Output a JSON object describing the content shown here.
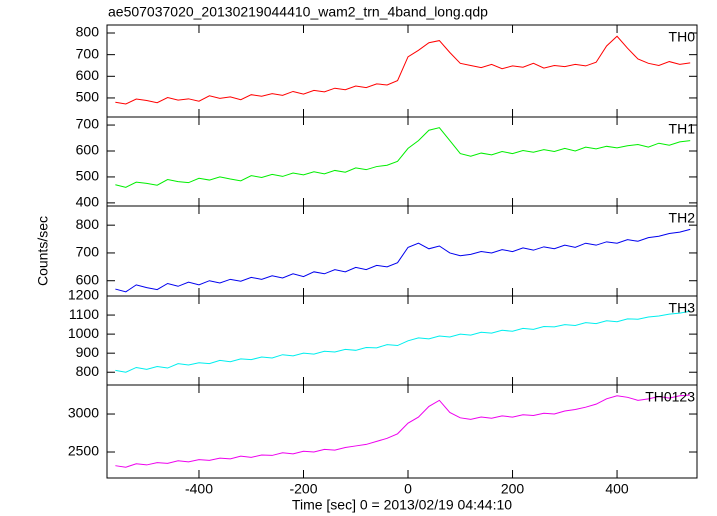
{
  "chart_data": {
    "type": "line",
    "title": "ae507037020_20130219044410_wam2_trn_4band_long.qdp",
    "x_label": "Time [sec] 0 = 2013/02/19 04:44:10",
    "y_label": "Counts/sec",
    "xlim": [
      -576,
      553
    ],
    "xticks": [
      -400,
      -200,
      0,
      200,
      400
    ],
    "x": [
      -560,
      -540,
      -520,
      -500,
      -480,
      -460,
      -440,
      -420,
      -400,
      -380,
      -360,
      -340,
      -320,
      -300,
      -280,
      -260,
      -240,
      -220,
      -200,
      -180,
      -160,
      -140,
      -120,
      -100,
      -80,
      -60,
      -40,
      -20,
      0,
      20,
      40,
      60,
      80,
      100,
      120,
      140,
      160,
      180,
      200,
      220,
      240,
      260,
      280,
      300,
      320,
      340,
      360,
      380,
      400,
      420,
      440,
      460,
      480,
      500,
      520,
      540
    ],
    "series": [
      {
        "name": "TH0",
        "color": "#ff0000",
        "ylim": [
          412,
          837
        ],
        "yticks": [
          500,
          600,
          700,
          800
        ],
        "values": [
          480,
          472,
          495,
          488,
          478,
          502,
          490,
          496,
          485,
          510,
          498,
          505,
          492,
          515,
          508,
          520,
          512,
          530,
          518,
          535,
          528,
          545,
          538,
          555,
          548,
          565,
          560,
          580,
          690,
          720,
          755,
          765,
          710,
          660,
          650,
          640,
          655,
          635,
          648,
          642,
          660,
          638,
          650,
          645,
          655,
          648,
          665,
          740,
          785,
          730,
          680,
          660,
          650,
          668,
          655,
          662
        ]
      },
      {
        "name": "TH1",
        "color": "#00ee00",
        "ylim": [
          388,
          731
        ],
        "yticks": [
          400,
          500,
          600,
          700
        ],
        "values": [
          470,
          460,
          480,
          475,
          468,
          490,
          482,
          478,
          495,
          488,
          500,
          492,
          485,
          505,
          498,
          510,
          502,
          515,
          508,
          520,
          512,
          525,
          518,
          535,
          528,
          540,
          545,
          560,
          610,
          640,
          680,
          690,
          640,
          590,
          580,
          592,
          585,
          598,
          590,
          602,
          595,
          605,
          598,
          610,
          600,
          615,
          608,
          618,
          612,
          620,
          625,
          615,
          630,
          622,
          635,
          640
        ]
      },
      {
        "name": "TH2",
        "color": "#0000ee",
        "ylim": [
          545,
          869
        ],
        "yticks": [
          600,
          700,
          800
        ],
        "values": [
          570,
          560,
          585,
          575,
          568,
          590,
          580,
          595,
          585,
          600,
          592,
          605,
          598,
          612,
          605,
          618,
          610,
          625,
          615,
          632,
          625,
          640,
          632,
          648,
          640,
          655,
          650,
          665,
          720,
          735,
          715,
          725,
          700,
          690,
          695,
          705,
          700,
          712,
          705,
          718,
          710,
          722,
          715,
          728,
          720,
          735,
          728,
          740,
          735,
          748,
          742,
          755,
          760,
          770,
          775,
          785
        ]
      },
      {
        "name": "TH3",
        "color": "#00eeee",
        "ylim": [
          733,
          1200
        ],
        "yticks": [
          800,
          900,
          1000,
          1100,
          1200
        ],
        "values": [
          810,
          800,
          825,
          815,
          830,
          822,
          845,
          838,
          850,
          845,
          862,
          855,
          870,
          866,
          880,
          875,
          892,
          886,
          900,
          895,
          910,
          906,
          920,
          915,
          930,
          928,
          945,
          940,
          965,
          980,
          975,
          990,
          985,
          1000,
          995,
          1010,
          1005,
          1020,
          1015,
          1030,
          1025,
          1040,
          1038,
          1050,
          1045,
          1060,
          1055,
          1070,
          1065,
          1080,
          1078,
          1090,
          1095,
          1105,
          1110,
          1120
        ]
      },
      {
        "name": "TH0123",
        "color": "#ee00ee",
        "ylim": [
          2158,
          3382
        ],
        "yticks": [
          2500,
          3000
        ],
        "values": [
          2320,
          2300,
          2345,
          2330,
          2360,
          2350,
          2385,
          2370,
          2400,
          2390,
          2420,
          2410,
          2445,
          2430,
          2460,
          2455,
          2490,
          2475,
          2510,
          2500,
          2535,
          2525,
          2560,
          2580,
          2600,
          2640,
          2680,
          2740,
          2880,
          2960,
          3100,
          3180,
          3020,
          2950,
          2930,
          2960,
          2945,
          2975,
          2960,
          2990,
          2980,
          3010,
          3000,
          3040,
          3060,
          3090,
          3130,
          3200,
          3240,
          3220,
          3180,
          3200,
          3230,
          3210,
          3240,
          3250
        ]
      }
    ]
  }
}
